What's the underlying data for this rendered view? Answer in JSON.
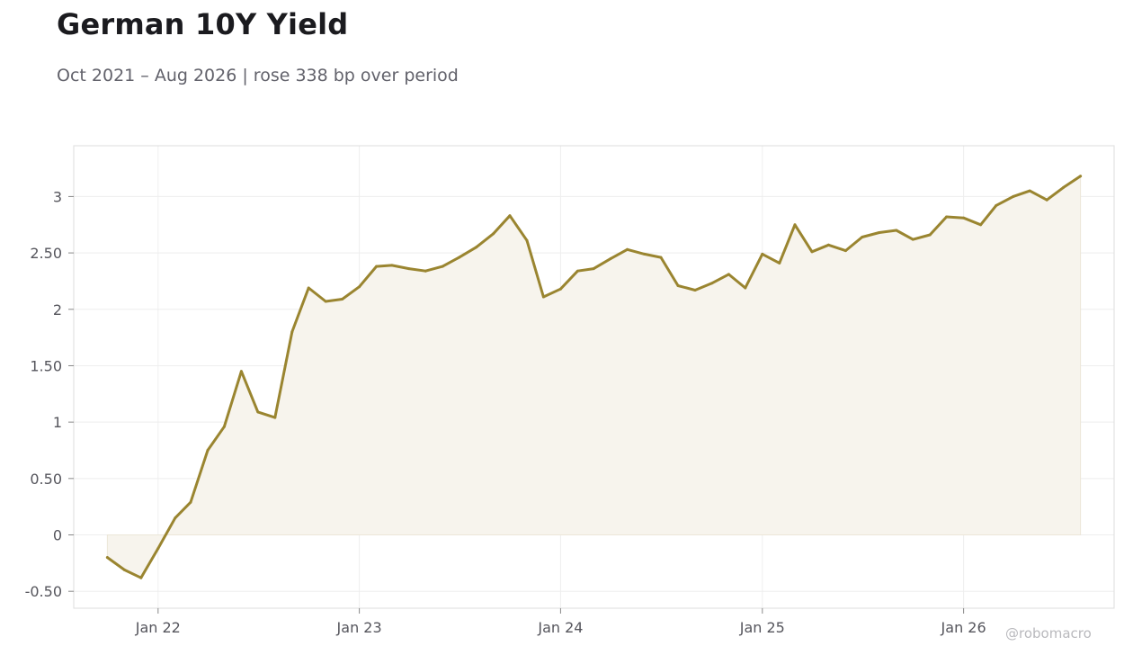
{
  "header": {
    "title": "German 10Y Yield",
    "subtitle": "Oct 2021 – Aug 2026 | rose 338 bp over period"
  },
  "footer": {
    "watermark": "@robomacro"
  },
  "colors": {
    "line": "#9a8530",
    "fill": "#f7f4ed",
    "grid": "#eeeeee",
    "frame": "#dddddd"
  },
  "chart_data": {
    "type": "area",
    "title": "German 10Y Yield",
    "subtitle": "Oct 2021 – Aug 2026 | rose 338 bp over period",
    "xlabel": "",
    "ylabel": "",
    "grid": true,
    "xlim": [
      "2021-08-01",
      "2026-10-01"
    ],
    "ylim": [
      -0.65,
      3.45
    ],
    "y_ticks": [
      -0.5,
      0,
      0.5,
      1,
      1.5,
      2,
      2.5,
      3
    ],
    "y_tick_labels": [
      "-0.50",
      "0",
      "0.50",
      "1",
      "1.50",
      "2",
      "2.50",
      "3"
    ],
    "x_ticks": [
      "2022-01-01",
      "2023-01-01",
      "2024-01-01",
      "2025-01-01",
      "2026-01-01"
    ],
    "x_tick_labels": [
      "Jan 22",
      "Jan 23",
      "Jan 24",
      "Jan 25",
      "Jan 26"
    ],
    "series": [
      {
        "x": [
          "2021-10",
          "2021-11",
          "2021-12",
          "2022-01",
          "2022-02",
          "2022-03",
          "2022-04",
          "2022-05",
          "2022-06",
          "2022-07",
          "2022-08",
          "2022-09",
          "2022-10",
          "2022-11",
          "2022-12",
          "2023-01",
          "2023-02",
          "2023-03",
          "2023-04",
          "2023-05",
          "2023-06",
          "2023-07",
          "2023-08",
          "2023-09",
          "2023-10",
          "2023-11",
          "2023-12",
          "2024-01",
          "2024-02",
          "2024-03",
          "2024-04",
          "2024-05",
          "2024-06",
          "2024-07",
          "2024-08",
          "2024-09",
          "2024-10",
          "2024-11",
          "2024-12",
          "2025-01",
          "2025-02",
          "2025-03",
          "2025-04",
          "2025-05",
          "2025-06",
          "2025-07",
          "2025-08",
          "2025-09",
          "2025-10",
          "2025-11",
          "2025-12",
          "2026-01",
          "2026-02",
          "2026-03",
          "2026-04",
          "2026-05",
          "2026-06",
          "2026-07",
          "2026-08"
        ],
        "values": [
          -0.2,
          -0.31,
          -0.38,
          -0.12,
          0.15,
          0.29,
          0.75,
          0.96,
          1.45,
          1.09,
          1.04,
          1.8,
          2.19,
          2.07,
          2.09,
          2.2,
          2.38,
          2.39,
          2.36,
          2.34,
          2.38,
          2.46,
          2.55,
          2.67,
          2.83,
          2.61,
          2.11,
          2.18,
          2.34,
          2.36,
          2.45,
          2.53,
          2.49,
          2.46,
          2.21,
          2.17,
          2.23,
          2.31,
          2.19,
          2.49,
          2.41,
          2.75,
          2.51,
          2.57,
          2.52,
          2.64,
          2.68,
          2.7,
          2.62,
          2.66,
          2.82,
          2.81,
          2.75,
          2.92,
          3.0,
          3.05,
          2.97,
          3.08,
          3.18
        ]
      }
    ]
  }
}
